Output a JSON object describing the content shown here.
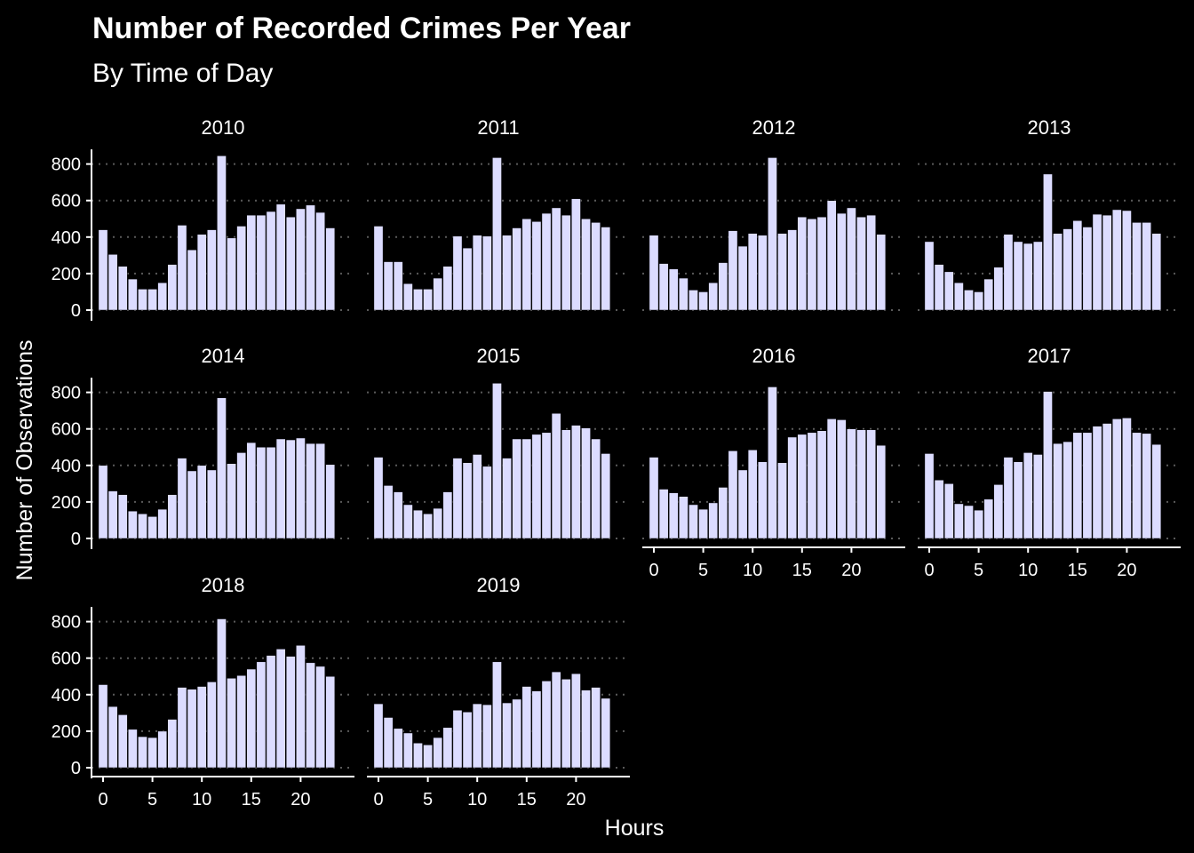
{
  "chart_data": {
    "type": "bar",
    "title": "Number of Recorded Crimes Per Year",
    "subtitle": "By Time of Day",
    "xlabel": "Hours",
    "ylabel": "Number of Observations",
    "x": [
      0,
      1,
      2,
      3,
      4,
      5,
      6,
      7,
      8,
      9,
      10,
      11,
      12,
      13,
      14,
      15,
      16,
      17,
      18,
      19,
      20,
      21,
      22,
      23
    ],
    "x_ticks": [
      0,
      5,
      10,
      15,
      20
    ],
    "y_ticks": [
      0,
      200,
      400,
      600,
      800
    ],
    "ylim": [
      0,
      880
    ],
    "grid": "horizontal dotted",
    "bar_color": "#dcdcff",
    "background_color": "#000000",
    "text_color": "#ffffff",
    "panels": [
      {
        "label": "2010",
        "values": [
          440,
          305,
          240,
          170,
          115,
          115,
          150,
          250,
          465,
          330,
          415,
          440,
          845,
          395,
          460,
          520,
          520,
          540,
          580,
          510,
          555,
          575,
          535,
          450
        ]
      },
      {
        "label": "2011",
        "values": [
          460,
          265,
          265,
          145,
          115,
          115,
          175,
          240,
          405,
          340,
          410,
          405,
          835,
          410,
          450,
          500,
          485,
          530,
          560,
          520,
          610,
          500,
          480,
          455
        ]
      },
      {
        "label": "2012",
        "values": [
          410,
          255,
          225,
          175,
          110,
          100,
          150,
          260,
          435,
          350,
          420,
          410,
          835,
          420,
          440,
          510,
          500,
          510,
          600,
          530,
          560,
          510,
          520,
          415
        ]
      },
      {
        "label": "2013",
        "values": [
          375,
          250,
          210,
          150,
          110,
          100,
          170,
          235,
          415,
          375,
          365,
          375,
          745,
          420,
          445,
          490,
          455,
          525,
          520,
          550,
          545,
          480,
          480,
          420
        ]
      },
      {
        "label": "2014",
        "values": [
          400,
          260,
          240,
          150,
          135,
          120,
          160,
          240,
          440,
          370,
          400,
          375,
          770,
          410,
          470,
          525,
          500,
          500,
          545,
          540,
          550,
          520,
          520,
          405
        ]
      },
      {
        "label": "2015",
        "values": [
          445,
          290,
          255,
          185,
          155,
          135,
          165,
          255,
          440,
          415,
          460,
          395,
          850,
          440,
          545,
          545,
          570,
          580,
          685,
          595,
          620,
          605,
          545,
          465
        ]
      },
      {
        "label": "2016",
        "values": [
          445,
          270,
          250,
          230,
          185,
          160,
          195,
          280,
          480,
          375,
          485,
          420,
          830,
          415,
          555,
          570,
          580,
          590,
          655,
          650,
          600,
          595,
          595,
          510
        ]
      },
      {
        "label": "2017",
        "values": [
          465,
          320,
          300,
          190,
          180,
          155,
          215,
          295,
          445,
          420,
          470,
          460,
          805,
          520,
          530,
          580,
          580,
          615,
          630,
          655,
          660,
          580,
          575,
          515
        ]
      },
      {
        "label": "2018",
        "values": [
          455,
          335,
          290,
          210,
          170,
          165,
          200,
          265,
          440,
          430,
          445,
          470,
          815,
          490,
          505,
          540,
          580,
          615,
          650,
          610,
          670,
          575,
          555,
          500
        ]
      },
      {
        "label": "2019",
        "values": [
          350,
          275,
          215,
          190,
          135,
          125,
          165,
          220,
          315,
          305,
          350,
          345,
          580,
          355,
          375,
          445,
          420,
          475,
          525,
          485,
          515,
          425,
          440,
          380
        ]
      }
    ]
  }
}
